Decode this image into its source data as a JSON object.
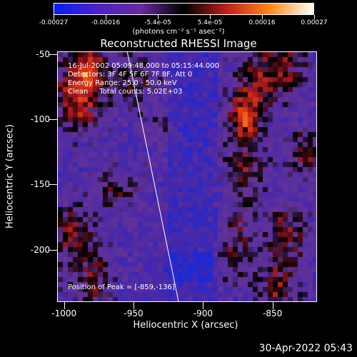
{
  "colorbar": {
    "tick_labels": [
      "-0.00027",
      "-0.00016",
      "-5.4e-05",
      "5.4e-05",
      "0.00016",
      "0.00027"
    ],
    "units": "(photons cm⁻² s⁻¹ asec⁻²)",
    "colors": [
      "#0a1cff",
      "#4b22c8",
      "#6a2aa0",
      "#000000",
      "#c0201c",
      "#ff8a18",
      "#ffffff"
    ]
  },
  "title": "Reconstructed RHESSI Image",
  "info": {
    "time": "16-Jul-2002 05:09:48.000 to 05:15:44.000",
    "detectors": "Detectors: 3F 4F 5F 6F 7F 8F, Att 0",
    "energy": "Energy Range: 25.0 - 50.0 keV",
    "clean": "Clean     Total counts: 5.02E+03"
  },
  "peak": "Position of Peak = [-859,-136]",
  "chart_data": {
    "type": "heatmap",
    "title": "Reconstructed RHESSI Image",
    "xlabel": "Heliocentric X (arcsec)",
    "ylabel": "Heliocentric Y (arcsec)",
    "xlim": [
      -1005,
      -818
    ],
    "ylim": [
      -240,
      -48
    ],
    "x_ticks": [
      -1000,
      -950,
      -900,
      -850
    ],
    "y_ticks": [
      -50,
      -100,
      -150,
      -200
    ],
    "x_tick_labels": [
      "-1000",
      "-950",
      "-900",
      "-850"
    ],
    "y_tick_labels": [
      "-50",
      "-100",
      "-150",
      "-200"
    ],
    "value_range": [
      -0.00027,
      0.00027
    ],
    "peak": [
      -859,
      -136
    ],
    "limb_line": [
      [
        -955,
        -48
      ],
      [
        -918,
        -240
      ]
    ]
  },
  "timestamp": "30-Apr-2022 05:43"
}
